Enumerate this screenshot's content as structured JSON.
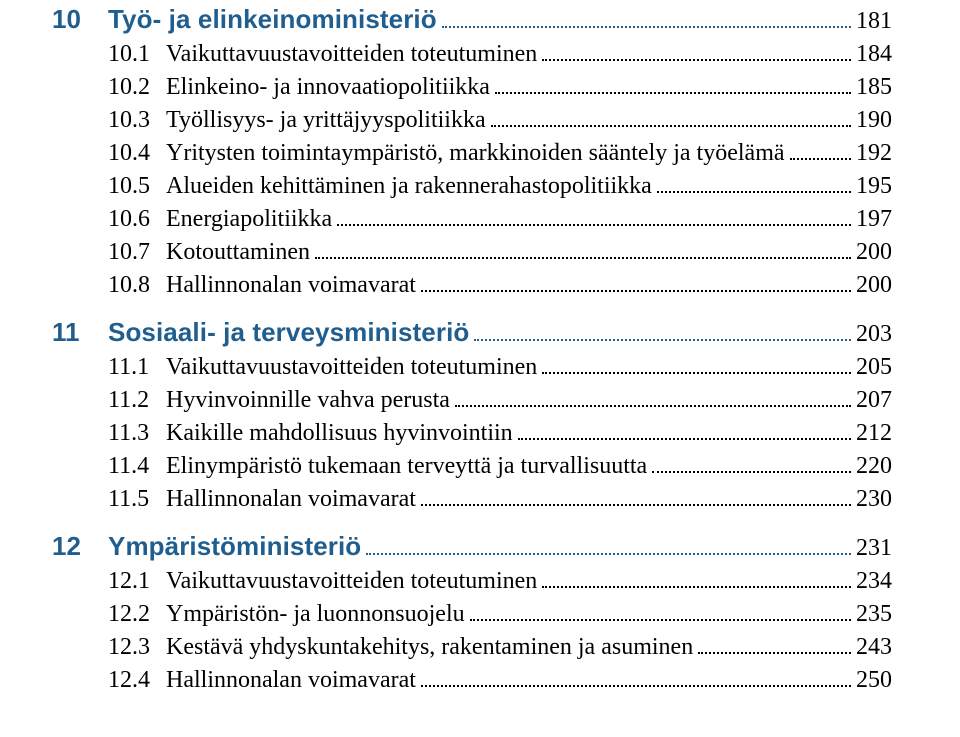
{
  "colors": {
    "chapter": "#1f5e8e",
    "text": "#000000",
    "background": "#ffffff",
    "leader": "#000000"
  },
  "typography": {
    "chapter_font": "Myriad Pro / Helvetica sans-serif",
    "chapter_size_pt": 20,
    "chapter_weight": 700,
    "body_font": "Minion Pro / Georgia serif",
    "body_size_pt": 18,
    "body_weight": 400
  },
  "chapters": [
    {
      "num": "10",
      "title": "Työ- ja elinkeinoministeriö",
      "page": "181",
      "sections": [
        {
          "num": "10.1",
          "title": "Vaikuttavuustavoitteiden toteutuminen",
          "page": "184"
        },
        {
          "num": "10.2",
          "title": "Elinkeino- ja innovaatiopolitiikka",
          "page": "185"
        },
        {
          "num": "10.3",
          "title": "Työllisyys- ja yrittäjyyspolitiikka",
          "page": "190"
        },
        {
          "num": "10.4",
          "title": "Yritysten toimintaympäristö, markkinoiden sääntely ja työelämä",
          "page": "192"
        },
        {
          "num": "10.5",
          "title": "Alueiden kehittäminen ja rakennerahastopolitiikka",
          "page": "195"
        },
        {
          "num": "10.6",
          "title": "Energiapolitiikka",
          "page": "197"
        },
        {
          "num": "10.7",
          "title": "Kotouttaminen",
          "page": "200"
        },
        {
          "num": "10.8",
          "title": "Hallinnonalan voimavarat",
          "page": "200"
        }
      ]
    },
    {
      "num": "11",
      "title": "Sosiaali- ja terveysministeriö",
      "page": "203",
      "sections": [
        {
          "num": "11.1",
          "title": "Vaikuttavuustavoitteiden toteutuminen",
          "page": "205"
        },
        {
          "num": "11.2",
          "title": "Hyvinvoinnille vahva perusta",
          "page": "207"
        },
        {
          "num": "11.3",
          "title": "Kaikille mahdollisuus hyvinvointiin",
          "page": "212"
        },
        {
          "num": "11.4",
          "title": "Elinympäristö tukemaan terveyttä ja turvallisuutta",
          "page": "220"
        },
        {
          "num": "11.5",
          "title": "Hallinnonalan voimavarat",
          "page": "230"
        }
      ]
    },
    {
      "num": "12",
      "title": "Ympäristöministeriö",
      "page": "231",
      "sections": [
        {
          "num": "12.1",
          "title": "Vaikuttavuustavoitteiden toteutuminen",
          "page": "234"
        },
        {
          "num": "12.2",
          "title": "Ympäristön- ja luonnonsuojelu",
          "page": "235"
        },
        {
          "num": "12.3",
          "title": "Kestävä yhdyskuntakehitys, rakentaminen ja asuminen",
          "page": "243"
        },
        {
          "num": "12.4",
          "title": "Hallinnonalan voimavarat",
          "page": "250"
        }
      ]
    }
  ]
}
